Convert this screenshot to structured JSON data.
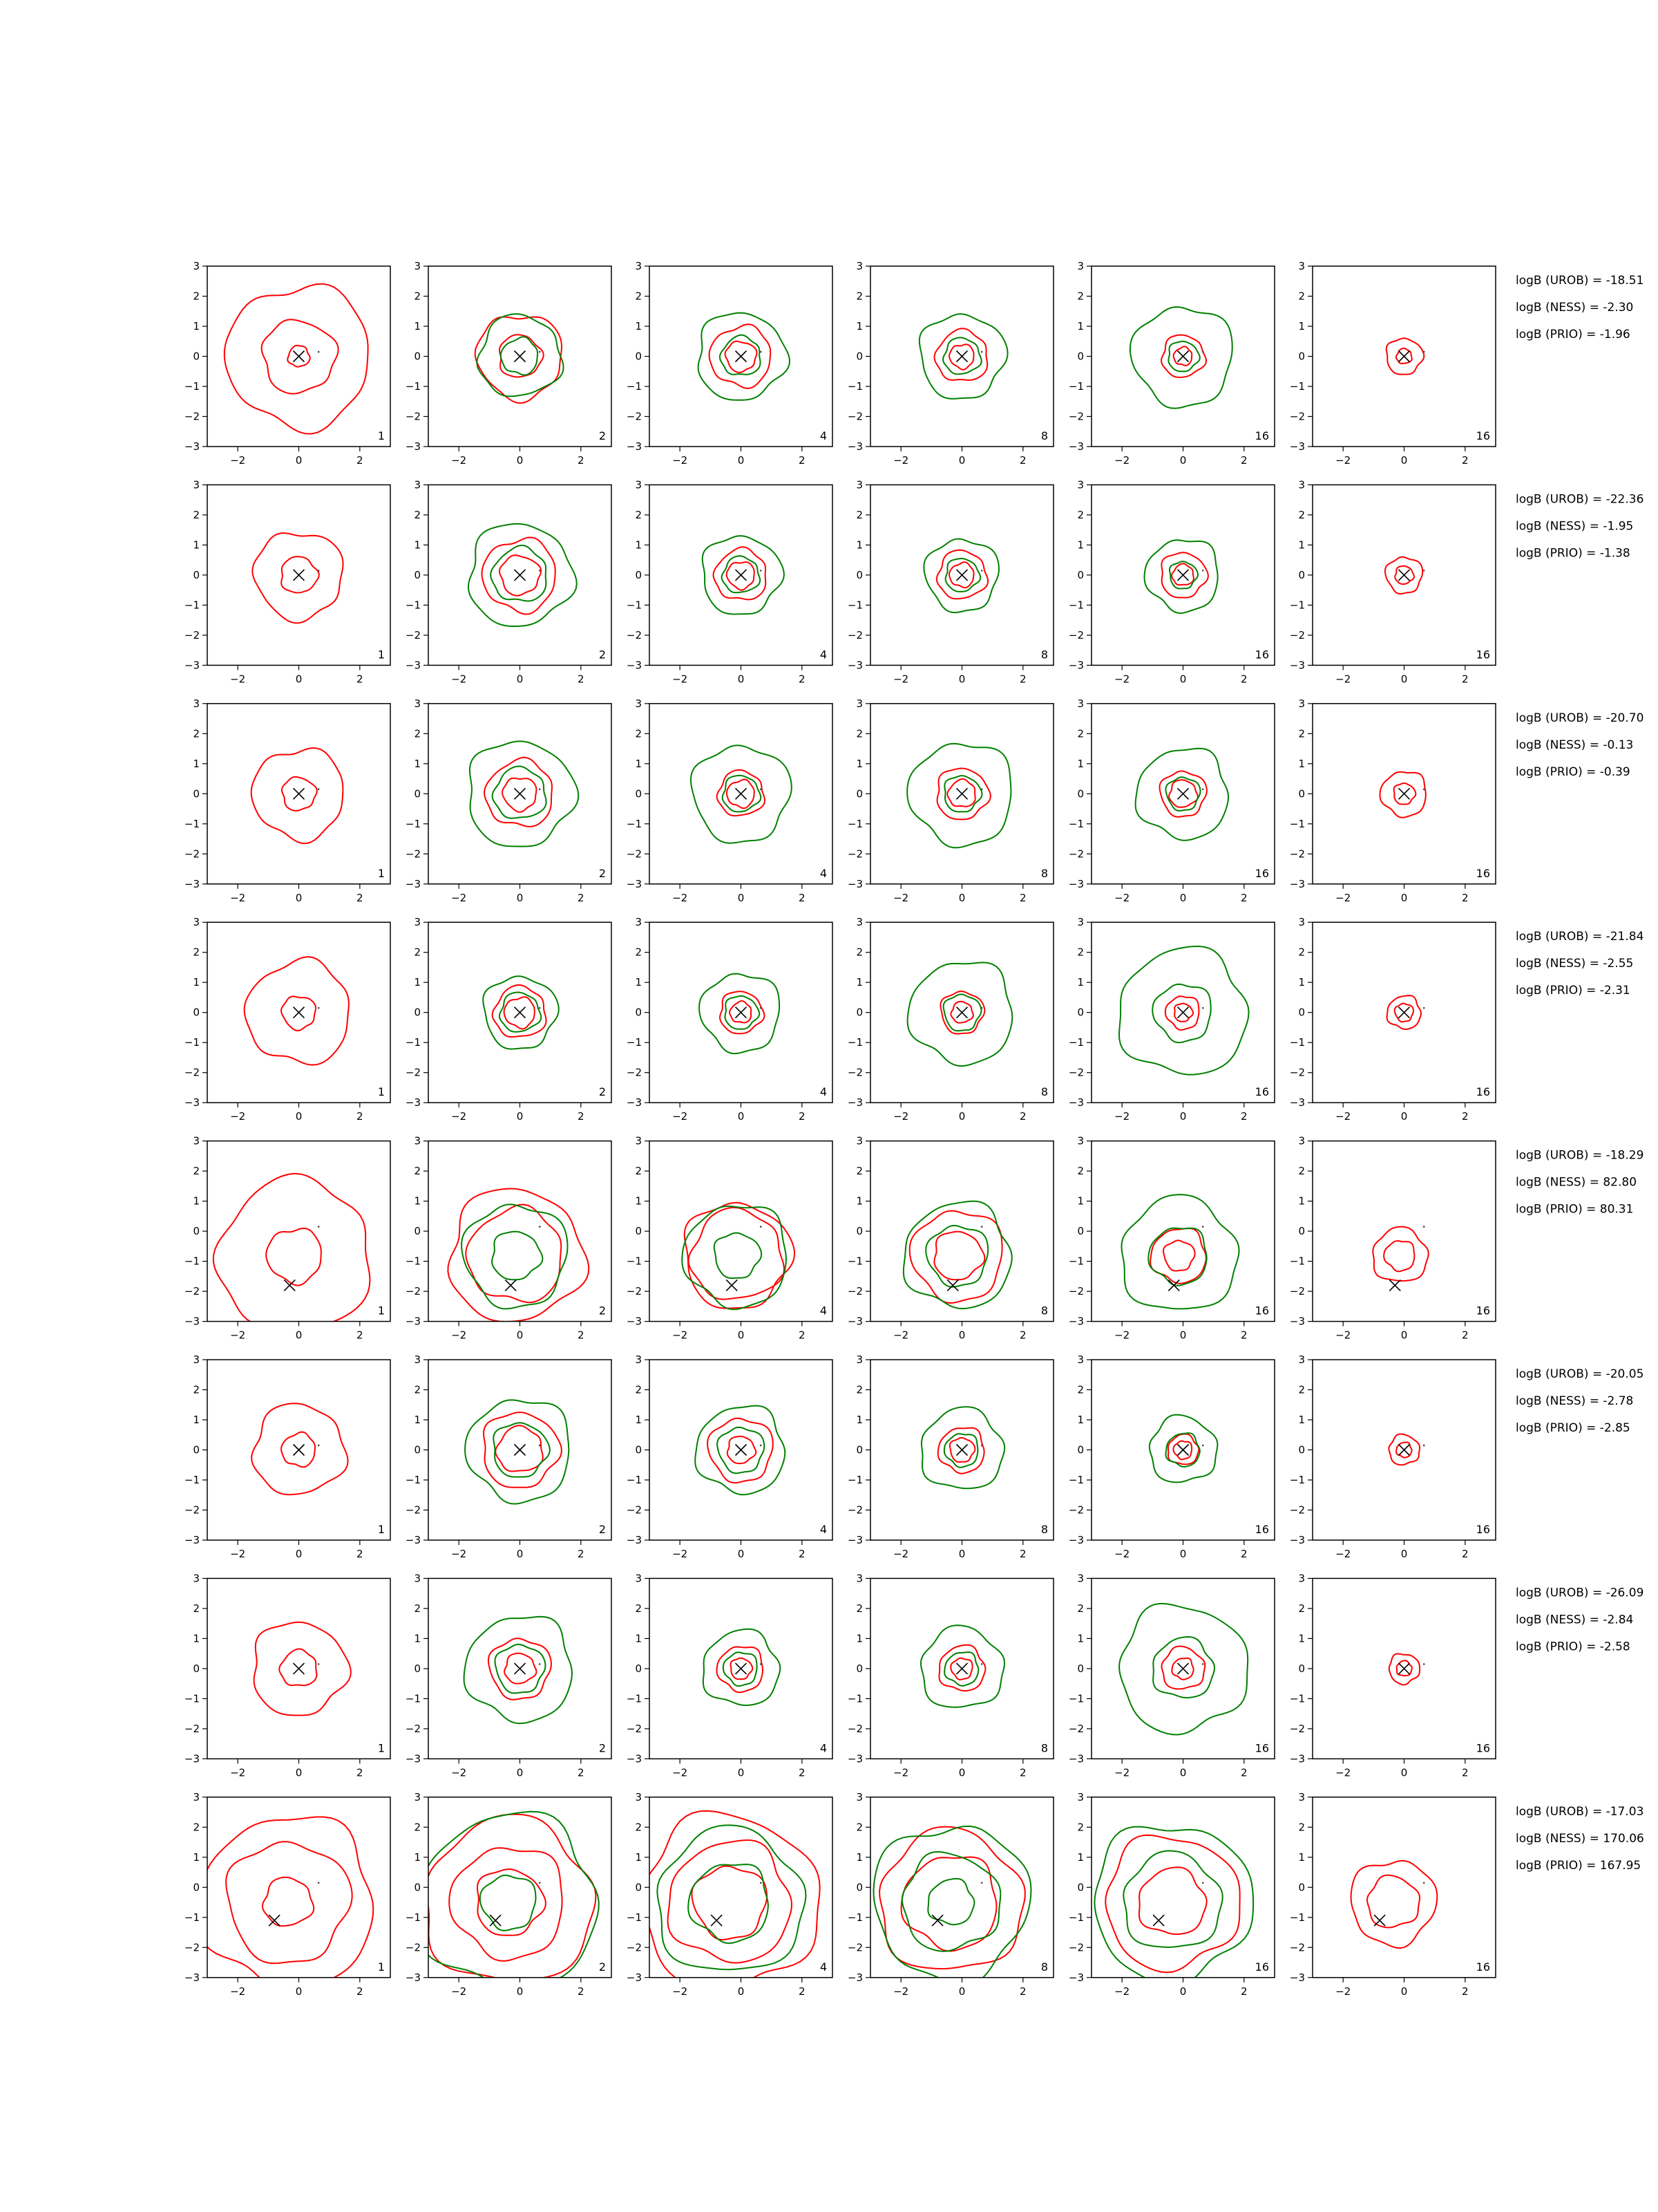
{
  "chart_data": {
    "type": "contour",
    "xlim": [
      -3,
      3
    ],
    "ylim": [
      -3,
      3
    ],
    "xticks": [
      -2,
      0,
      2
    ],
    "yticks": [
      -3,
      -2,
      -1,
      0,
      1,
      2,
      3
    ],
    "grid": false,
    "colors": {
      "red": "#ff0000",
      "green": "#008000",
      "marker": "#000000"
    },
    "panel_labels": [
      "1",
      "2",
      "4",
      "8",
      "16",
      "16"
    ],
    "rows": [
      {
        "marker": [
          0.0,
          0.0
        ],
        "dot": [
          0.65,
          0.15
        ],
        "stats": [
          "logB (UROB) = -18.51",
          "logB (NESS) = -2.30",
          "logB (PRIO) = -1.96"
        ],
        "panels": [
          {
            "label": "1",
            "red": [
              0.35,
              1.2,
              2.35
            ],
            "green": []
          },
          {
            "label": "2",
            "red": [
              0.7,
              1.4
            ],
            "green": [
              0.6,
              1.35
            ]
          },
          {
            "label": "4",
            "red": [
              0.5,
              1.0
            ],
            "green": [
              0.65,
              1.45
            ]
          },
          {
            "label": "8",
            "red": [
              0.4,
              0.85
            ],
            "green": [
              0.6,
              1.4
            ]
          },
          {
            "label": "16",
            "red": [
              0.3,
              0.7
            ],
            "green": [
              0.5,
              1.65
            ]
          },
          {
            "label": "16",
            "red": [
              0.25,
              0.6
            ],
            "green": []
          }
        ]
      },
      {
        "marker": [
          0.0,
          0.0
        ],
        "dot": [
          0.65,
          0.15
        ],
        "stats": [
          "logB (UROB) = -22.36",
          "logB (NESS) = -1.95",
          "logB (PRIO) = -1.38"
        ],
        "panels": [
          {
            "label": "1",
            "red": [
              0.6,
              1.45
            ],
            "green": []
          },
          {
            "label": "2",
            "red": [
              0.65,
              1.2
            ],
            "green": [
              0.9,
              1.7
            ]
          },
          {
            "label": "4",
            "red": [
              0.45,
              0.85
            ],
            "green": [
              0.6,
              1.3
            ]
          },
          {
            "label": "8",
            "red": [
              0.4,
              0.8
            ],
            "green": [
              0.55,
              1.2
            ]
          },
          {
            "label": "16",
            "red": [
              0.35,
              0.75
            ],
            "green": [
              0.45,
              1.2
            ]
          },
          {
            "label": "16",
            "red": [
              0.3,
              0.6
            ],
            "green": []
          }
        ]
      },
      {
        "marker": [
          0.0,
          0.0
        ],
        "dot": [
          0.65,
          0.15
        ],
        "stats": [
          "logB (UROB) = -20.70",
          "logB (NESS) = -0.13",
          "logB (PRIO) = -0.39"
        ],
        "panels": [
          {
            "label": "1",
            "red": [
              0.55,
              1.5
            ],
            "green": []
          },
          {
            "label": "2",
            "red": [
              0.55,
              1.1
            ],
            "green": [
              0.85,
              1.75
            ]
          },
          {
            "label": "4",
            "red": [
              0.45,
              0.75
            ],
            "green": [
              0.6,
              1.6
            ]
          },
          {
            "label": "8",
            "red": [
              0.45,
              0.85
            ],
            "green": [
              0.6,
              1.7
            ]
          },
          {
            "label": "16",
            "red": [
              0.45,
              0.75
            ],
            "green": [
              0.55,
              1.5
            ]
          },
          {
            "label": "16",
            "red": [
              0.35,
              0.75
            ],
            "green": []
          }
        ]
      },
      {
        "marker": [
          0.0,
          0.0
        ],
        "dot": [
          0.65,
          0.15
        ],
        "stats": [
          "logB (UROB) = -21.84",
          "logB (NESS) = -2.55",
          "logB (PRIO) = -2.31"
        ],
        "panels": [
          {
            "label": "1",
            "red": [
              0.55,
              1.7
            ],
            "green": []
          },
          {
            "label": "2",
            "red": [
              0.5,
              0.85
            ],
            "green": [
              0.65,
              1.2
            ]
          },
          {
            "label": "4",
            "red": [
              0.35,
              0.7
            ],
            "green": [
              0.55,
              1.3
            ]
          },
          {
            "label": "8",
            "red": [
              0.35,
              0.7
            ],
            "green": [
              0.6,
              1.7
            ]
          },
          {
            "label": "16",
            "red": [
              0.3,
              0.55
            ],
            "green": [
              0.95,
              2.1
            ]
          },
          {
            "label": "16",
            "red": [
              0.3,
              0.55
            ],
            "green": []
          }
        ]
      },
      {
        "marker": [
          -0.3,
          -1.8
        ],
        "dot": [
          0.65,
          0.15
        ],
        "stats": [
          "logB (UROB) = -18.29",
          "logB (NESS) = 82.80",
          "logB (PRIO) = 80.31"
        ],
        "panels": [
          {
            "label": "1",
            "red": [
              0.9,
              2.5
            ],
            "green": []
          },
          {
            "label": "2",
            "red": [
              1.55,
              2.2
            ],
            "green": [
              0.8,
              1.7
            ]
          },
          {
            "label": "4",
            "red": [
              1.5,
              1.75
            ],
            "green": [
              0.75,
              1.7
            ]
          },
          {
            "label": "8",
            "red": [
              0.8,
              1.5
            ],
            "green": [
              1.0,
              1.75
            ]
          },
          {
            "label": "16",
            "red": [
              0.5,
              0.9
            ],
            "green": [
              0.95,
              1.9
            ]
          },
          {
            "label": "16",
            "red": [
              0.5,
              0.9
            ],
            "green": []
          }
        ]
      },
      {
        "marker": [
          0.0,
          0.0
        ],
        "dot": [
          0.65,
          0.15
        ],
        "stats": [
          "logB (UROB) = -20.05",
          "logB (NESS) = -2.78",
          "logB (PRIO) = -2.85"
        ],
        "panels": [
          {
            "label": "1",
            "red": [
              0.55,
              1.5
            ],
            "green": []
          },
          {
            "label": "2",
            "red": [
              0.75,
              1.25
            ],
            "green": [
              0.9,
              1.7
            ]
          },
          {
            "label": "4",
            "red": [
              0.45,
              1.05
            ],
            "green": [
              0.75,
              1.45
            ]
          },
          {
            "label": "8",
            "red": [
              0.4,
              0.75
            ],
            "green": [
              0.55,
              1.35
            ]
          },
          {
            "label": "16",
            "red": [
              0.3,
              0.5
            ],
            "green": [
              0.55,
              1.1
            ]
          },
          {
            "label": "16",
            "red": [
              0.25,
              0.5
            ],
            "green": []
          }
        ]
      },
      {
        "marker": [
          0.0,
          0.0
        ],
        "dot": [
          0.65,
          0.15
        ],
        "stats": [
          "logB (UROB) = -26.09",
          "logB (NESS) = -2.84",
          "logB (PRIO) = -2.58"
        ],
        "panels": [
          {
            "label": "1",
            "red": [
              0.6,
              1.55
            ],
            "green": []
          },
          {
            "label": "2",
            "red": [
              0.5,
              1.0
            ],
            "green": [
              0.8,
              1.75
            ]
          },
          {
            "label": "4",
            "red": [
              0.35,
              0.75
            ],
            "green": [
              0.55,
              1.25
            ]
          },
          {
            "label": "8",
            "red": [
              0.35,
              0.75
            ],
            "green": [
              0.55,
              1.35
            ]
          },
          {
            "label": "16",
            "red": [
              0.35,
              0.7
            ],
            "green": [
              1.0,
              2.1
            ]
          },
          {
            "label": "16",
            "red": [
              0.25,
              0.5
            ],
            "green": []
          }
        ]
      },
      {
        "marker": [
          -0.8,
          -1.1
        ],
        "dot": [
          0.65,
          0.15
        ],
        "stats": [
          "logB (UROB) = -17.03",
          "logB (NESS) = 170.06",
          "logB (PRIO) = 167.95"
        ],
        "panels": [
          {
            "label": "1",
            "red": [
              0.8,
              2.0,
              2.85
            ],
            "green": []
          },
          {
            "label": "2",
            "red": [
              1.1,
              1.85,
              2.75
            ],
            "green": [
              0.9,
              2.9
            ]
          },
          {
            "label": "4",
            "red": [
              1.2,
              2.0,
              2.9
            ],
            "green": [
              1.3,
              2.4
            ]
          },
          {
            "label": "8",
            "red": [
              1.55,
              2.35
            ],
            "green": [
              0.75,
              1.6,
              2.55
            ]
          },
          {
            "label": "16",
            "red": [
              1.1,
              2.2
            ],
            "green": [
              1.6,
              2.6
            ]
          },
          {
            "label": "16",
            "red": [
              0.85,
              1.4
            ],
            "green": []
          }
        ]
      }
    ]
  }
}
